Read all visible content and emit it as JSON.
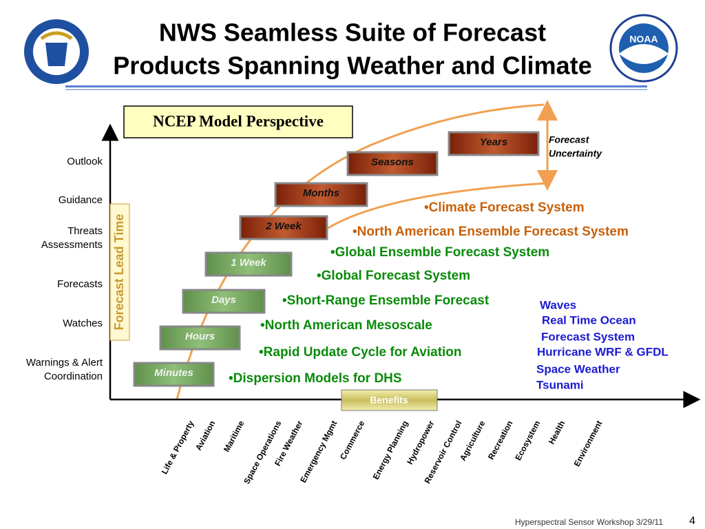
{
  "header": {
    "title": [
      "NWS Seamless Suite of Forecast",
      "Products Spanning Weather and Climate"
    ]
  },
  "noaa_logo": "NOAA",
  "perspective": "NCEP Model Perspective",
  "y_axis_label": "Forecast Lead Time",
  "left_labels": [
    [
      "Outlook"
    ],
    [
      "Guidance"
    ],
    [
      "Threats",
      "Assessments"
    ],
    [
      "Forecasts"
    ],
    [
      "Watches"
    ],
    [
      "Warnings & Alert",
      "Coordination"
    ]
  ],
  "steps": [
    "Minutes",
    "Hours",
    "Days",
    "1 Week",
    "2 Week",
    "Months",
    "Seasons",
    "Years"
  ],
  "uncertainty": [
    "Forecast",
    "Uncertainty"
  ],
  "models": [
    "•Climate Forecast System",
    "•North American Ensemble Forecast System",
    "•Global Ensemble Forecast System",
    "•Global Forecast System",
    "•Short-Range Ensemble Forecast",
    "•North American Mesoscale",
    "•Rapid Update Cycle for Aviation",
    "•Dispersion Models for DHS"
  ],
  "ocean_models": [
    "Waves",
    "Real Time Ocean",
    "Forecast System",
    "Hurricane WRF & GFDL",
    "Space Weather",
    "Tsunami"
  ],
  "benefits": "Benefits",
  "benefit_areas": [
    "Life & Property",
    "Aviation",
    "Maritime",
    "Space Operations",
    "Fire Weather",
    "Emergency Mgmt",
    "Commerce",
    "Energy Planning",
    "Hydropower",
    "Reservoir Control",
    "Agriculture",
    "Recreation",
    "Ecosystem",
    "Health",
    "Environment"
  ],
  "footer": {
    "text": "Hyperspectral Sensor Workshop 3/29/11",
    "page": "4"
  }
}
